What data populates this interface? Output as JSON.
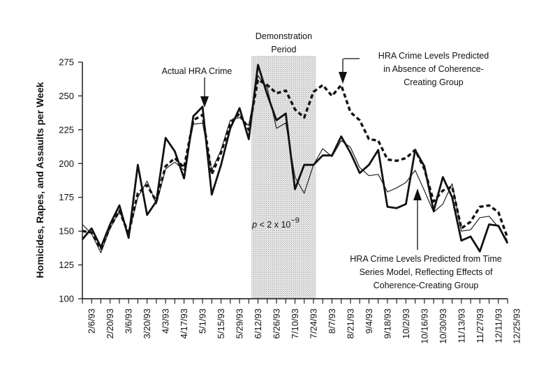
{
  "chart_data": {
    "type": "line",
    "title": "",
    "ylabel": "Homicides, Rapes, and Assaults per Week",
    "xlabel": "",
    "ylim": [
      100,
      275
    ],
    "yticks": [
      100,
      125,
      150,
      175,
      200,
      225,
      250,
      275
    ],
    "grid": false,
    "x_tick_labels": [
      "2/6/93",
      "2/20/93",
      "3/6/93",
      "3/20/93",
      "4/3/93",
      "4/17/93",
      "5/1/93",
      "5/15/93",
      "5/29/93",
      "6/12/93",
      "6/26/93",
      "7/10/93",
      "7/24/93",
      "8/7/93",
      "8/21/93",
      "9/4/93",
      "9/18/93",
      "10/2/93",
      "10/16/93",
      "10/30/93",
      "11/13/93",
      "11/27/93",
      "12/11/93",
      "12/25/93"
    ],
    "x_start": "1/30/93",
    "x_step_days": 7,
    "shaded_region": {
      "label": "Demonstration Period",
      "x_from": "6/7/93",
      "x_to": "7/26/93"
    },
    "annotations": {
      "actual": "Actual HRA Crime",
      "absence": [
        "HRA Crime Levels Predicted",
        "in Absence of Coherence-",
        "Creating Group"
      ],
      "time_series": [
        "HRA Crime Levels Predicted from Time",
        "Series Model, Reflecting Effects of",
        "Coherence-Creating Group"
      ],
      "p_value_prefix": "p",
      "p_value_mid": " < 2 x 10",
      "p_value_exp": "−9"
    },
    "series": [
      {
        "name": "Actual HRA Crime",
        "style": "thick-solid",
        "values": [
          144,
          152,
          138,
          155,
          169,
          145,
          199,
          162,
          172,
          219,
          209,
          189,
          235,
          242,
          177,
          199,
          226,
          241,
          218,
          273,
          251,
          232,
          237,
          181,
          199,
          199,
          206,
          206,
          220,
          208,
          193,
          199,
          210,
          168,
          167,
          170,
          210,
          198,
          165,
          190,
          175,
          143,
          146,
          135,
          155,
          154,
          141
        ]
      },
      {
        "name": "HRA Crime Levels Predicted from Time Series Model, Reflecting Effects of Coherence-Creating Group",
        "style": "thin-solid",
        "values": [
          155,
          148,
          134,
          152,
          165,
          148,
          175,
          187,
          170,
          196,
          201,
          195,
          229,
          230,
          195,
          210,
          232,
          234,
          228,
          265,
          256,
          226,
          230,
          190,
          178,
          199,
          211,
          205,
          217,
          212,
          197,
          191,
          192,
          179,
          182,
          186,
          195,
          180,
          164,
          170,
          185,
          150,
          151,
          160,
          161,
          153,
          143
        ]
      },
      {
        "name": "HRA Crime Levels Predicted in Absence of Coherence-Creating Group",
        "style": "thick-dashed",
        "values": [
          150,
          149,
          137,
          153,
          165,
          148,
          178,
          184,
          172,
          198,
          204,
          197,
          232,
          236,
          192,
          208,
          230,
          237,
          225,
          262,
          258,
          252,
          254,
          240,
          234,
          253,
          258,
          250,
          258,
          238,
          232,
          218,
          217,
          203,
          202,
          204,
          210,
          196,
          172,
          180,
          183,
          152,
          157,
          168,
          169,
          164,
          145
        ]
      }
    ]
  }
}
